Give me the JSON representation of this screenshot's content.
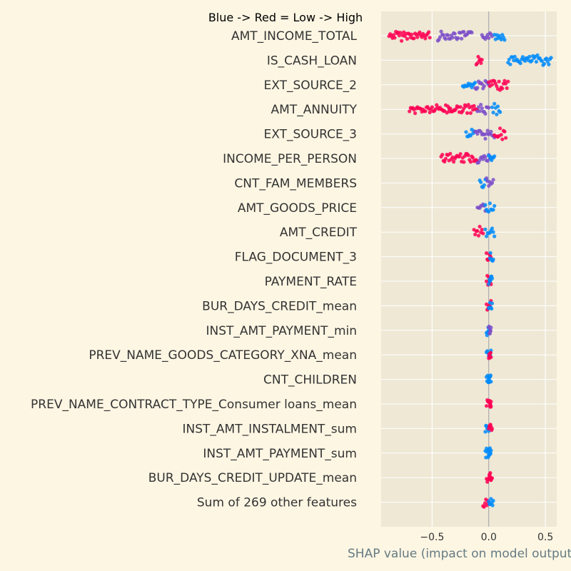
{
  "chart_data": {
    "type": "scatter",
    "subtype": "shap-beeswarm",
    "title": "Blue -> Red = Low -> High",
    "xlabel": "SHAP value (impact on model output)",
    "ylabel": "",
    "xlim": [
      -0.95,
      0.6
    ],
    "xticks": [
      -0.5,
      0.0,
      0.5
    ],
    "xtick_labels": [
      "−0.5",
      "0.0",
      "0.5"
    ],
    "grid": true,
    "colors": {
      "low": "#008bfb",
      "mid": "#7d4fc9",
      "high": "#ff0052",
      "plot_bg": "#eee8d5",
      "page_bg": "#fdf6e3",
      "grid": "#ffffff"
    },
    "features": [
      {
        "name": "AMT_INCOME_TOTAL",
        "segments": [
          [
            -0.88,
            -0.52,
            "high"
          ],
          [
            -0.45,
            -0.15,
            "mid"
          ],
          [
            -0.06,
            0.03,
            "mid"
          ],
          [
            0.05,
            0.14,
            "low"
          ]
        ]
      },
      {
        "name": "IS_CASH_LOAN",
        "segments": [
          [
            -0.11,
            -0.06,
            "high"
          ],
          [
            0.17,
            0.55,
            "low"
          ]
        ]
      },
      {
        "name": "EXT_SOURCE_2",
        "segments": [
          [
            -0.23,
            -0.12,
            "low"
          ],
          [
            -0.12,
            0.0,
            "mid"
          ],
          [
            0.0,
            0.17,
            "high"
          ]
        ]
      },
      {
        "name": "AMT_ANNUITY",
        "segments": [
          [
            -0.7,
            -0.35,
            "high"
          ],
          [
            -0.35,
            -0.1,
            "high"
          ],
          [
            -0.1,
            0.0,
            "mid"
          ],
          [
            0.03,
            0.1,
            "low"
          ]
        ]
      },
      {
        "name": "EXT_SOURCE_3",
        "segments": [
          [
            -0.2,
            -0.12,
            "low"
          ],
          [
            -0.12,
            0.05,
            "mid"
          ],
          [
            0.05,
            0.15,
            "high"
          ]
        ]
      },
      {
        "name": "INCOME_PER_PERSON",
        "segments": [
          [
            -0.42,
            -0.1,
            "high"
          ],
          [
            -0.1,
            0.02,
            "mid"
          ],
          [
            0.0,
            0.05,
            "low"
          ]
        ]
      },
      {
        "name": "CNT_FAM_MEMBERS",
        "segments": [
          [
            -0.08,
            -0.02,
            "low"
          ],
          [
            -0.02,
            0.04,
            "mid"
          ]
        ]
      },
      {
        "name": "AMT_GOODS_PRICE",
        "segments": [
          [
            -0.1,
            -0.03,
            "mid"
          ],
          [
            -0.03,
            0.05,
            "low"
          ]
        ]
      },
      {
        "name": "AMT_CREDIT",
        "segments": [
          [
            -0.13,
            -0.05,
            "high"
          ],
          [
            -0.03,
            0.05,
            "low"
          ]
        ]
      },
      {
        "name": "FLAG_DOCUMENT_3",
        "segments": [
          [
            -0.02,
            0.02,
            "high"
          ],
          [
            0.01,
            0.04,
            "low"
          ]
        ]
      },
      {
        "name": "PAYMENT_RATE",
        "segments": [
          [
            -0.02,
            0.02,
            "high"
          ],
          [
            0.0,
            0.03,
            "low"
          ]
        ]
      },
      {
        "name": "BUR_DAYS_CREDIT_mean",
        "segments": [
          [
            -0.02,
            0.02,
            "high"
          ],
          [
            0.0,
            0.03,
            "low"
          ]
        ]
      },
      {
        "name": "INST_AMT_PAYMENT_min",
        "segments": [
          [
            -0.02,
            0.01,
            "low"
          ],
          [
            0.0,
            0.02,
            "mid"
          ]
        ]
      },
      {
        "name": "PREV_NAME_GOODS_CATEGORY_XNA_mean",
        "segments": [
          [
            -0.02,
            0.02,
            "low"
          ],
          [
            0.0,
            0.02,
            "high"
          ]
        ]
      },
      {
        "name": "CNT_CHILDREN",
        "segments": [
          [
            -0.02,
            0.01,
            "low"
          ],
          [
            0.0,
            0.02,
            "low"
          ]
        ]
      },
      {
        "name": "PREV_NAME_CONTRACT_TYPE_Consumer loans_mean",
        "segments": [
          [
            -0.02,
            0.02,
            "high"
          ],
          [
            0.0,
            0.02,
            "high"
          ]
        ]
      },
      {
        "name": "INST_AMT_INSTALMENT_sum",
        "segments": [
          [
            -0.03,
            0.0,
            "low"
          ],
          [
            0.0,
            0.03,
            "high"
          ]
        ]
      },
      {
        "name": "INST_AMT_PAYMENT_sum",
        "segments": [
          [
            -0.03,
            0.0,
            "low"
          ],
          [
            0.0,
            0.02,
            "low"
          ]
        ]
      },
      {
        "name": "BUR_DAYS_CREDIT_UPDATE_mean",
        "segments": [
          [
            -0.02,
            0.02,
            "high"
          ],
          [
            0.0,
            0.03,
            "high"
          ]
        ]
      },
      {
        "name": "Sum of 269 other features",
        "segments": [
          [
            -0.05,
            0.0,
            "high"
          ],
          [
            0.0,
            0.04,
            "low"
          ]
        ]
      }
    ]
  }
}
